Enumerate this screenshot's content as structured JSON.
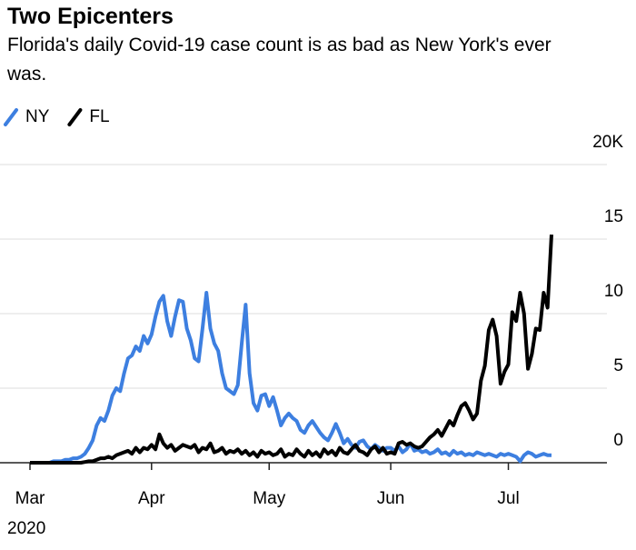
{
  "chart_data": {
    "type": "line",
    "title": "Two Epicenters",
    "subtitle": "Florida's daily Covid-19 case count is as bad as New York's ever was.",
    "year_label": "2020",
    "categories": [
      "Mar",
      null,
      null,
      null,
      null,
      null,
      null,
      null,
      null,
      null,
      null,
      null,
      null,
      null,
      null,
      null,
      null,
      null,
      null,
      null,
      null,
      null,
      null,
      null,
      null,
      null,
      null,
      null,
      null,
      null,
      null,
      "Apr",
      null,
      null,
      null,
      null,
      null,
      null,
      null,
      null,
      null,
      null,
      null,
      null,
      null,
      null,
      null,
      null,
      null,
      null,
      null,
      null,
      null,
      null,
      null,
      null,
      null,
      null,
      null,
      null,
      null,
      "May",
      null,
      null,
      null,
      null,
      null,
      null,
      null,
      null,
      null,
      null,
      null,
      null,
      null,
      null,
      null,
      null,
      null,
      null,
      null,
      null,
      null,
      null,
      null,
      null,
      null,
      null,
      null,
      null,
      null,
      null,
      "Jun",
      null,
      null,
      null,
      null,
      null,
      null,
      null,
      null,
      null,
      null,
      null,
      null,
      null,
      null,
      null,
      null,
      null,
      null,
      null,
      null,
      null,
      null,
      null,
      null,
      null,
      null,
      null,
      null,
      null,
      "Jul",
      null,
      null,
      null,
      null,
      null,
      null,
      null,
      null,
      null,
      null,
      null
    ],
    "series": [
      {
        "name": "NY",
        "color": "#3d7fe0",
        "values": [
          0,
          0,
          0,
          0,
          0,
          0,
          0.1,
          0.1,
          0.1,
          0.2,
          0.2,
          0.3,
          0.3,
          0.4,
          0.6,
          1.0,
          1.5,
          2.5,
          3.0,
          2.8,
          3.5,
          4.5,
          5.0,
          4.8,
          6.0,
          7.0,
          7.2,
          7.8,
          7.5,
          8.5,
          8.0,
          8.6,
          9.8,
          10.8,
          11.2,
          9.5,
          8.5,
          9.8,
          10.9,
          10.8,
          9.0,
          8.2,
          7.0,
          6.8,
          9.0,
          11.4,
          9.0,
          8.0,
          7.5,
          6.0,
          5.0,
          4.8,
          4.6,
          5.2,
          8.0,
          10.6,
          6.0,
          4.0,
          3.5,
          4.5,
          4.6,
          3.8,
          4.4,
          3.5,
          2.5,
          3.0,
          3.3,
          3.0,
          2.8,
          2.2,
          2.0,
          2.5,
          2.8,
          2.4,
          2.0,
          1.7,
          1.5,
          2.0,
          2.6,
          2.0,
          1.3,
          1.6,
          1.2,
          1.0,
          1.4,
          1.5,
          1.1,
          0.9,
          1.2,
          1.0,
          0.8,
          1.0,
          1.0,
          0.8,
          1.1,
          0.7,
          0.9,
          1.3,
          0.8,
          0.9,
          0.7,
          0.8,
          0.6,
          0.7,
          0.9,
          0.6,
          0.7,
          0.5,
          0.8,
          0.6,
          0.7,
          0.5,
          0.6,
          0.5,
          0.7,
          0.6,
          0.5,
          0.6,
          0.5,
          0.4,
          0.6,
          0.5,
          0.6,
          0.5,
          0.4,
          0.1,
          0.5,
          0.7,
          0.6,
          0.4,
          0.5,
          0.6,
          0.5,
          0.5
        ]
      },
      {
        "name": "FL",
        "color": "#000000",
        "values": [
          0,
          0,
          0,
          0,
          0,
          0,
          0,
          0,
          0,
          0,
          0,
          0,
          0,
          0,
          0.05,
          0.1,
          0.1,
          0.2,
          0.3,
          0.3,
          0.4,
          0.3,
          0.5,
          0.6,
          0.7,
          0.8,
          0.6,
          1.0,
          0.7,
          1.0,
          0.9,
          1.2,
          0.9,
          1.9,
          1.3,
          1.0,
          1.2,
          0.8,
          1.0,
          1.2,
          1.1,
          1.0,
          1.2,
          0.7,
          1.0,
          0.9,
          1.3,
          0.7,
          0.8,
          1.0,
          0.6,
          0.8,
          0.7,
          0.9,
          0.6,
          0.8,
          0.5,
          0.7,
          0.4,
          0.8,
          0.6,
          0.7,
          0.5,
          0.6,
          0.9,
          0.4,
          0.6,
          0.5,
          0.9,
          0.6,
          0.4,
          0.8,
          0.5,
          0.7,
          0.4,
          0.9,
          0.6,
          0.8,
          0.5,
          1.0,
          0.7,
          0.6,
          0.9,
          1.2,
          0.8,
          0.7,
          0.5,
          0.9,
          1.1,
          0.7,
          1.0,
          0.6,
          0.7,
          0.6,
          1.3,
          1.4,
          1.2,
          1.3,
          1.1,
          1.0,
          1.1,
          1.4,
          1.7,
          1.9,
          2.2,
          1.8,
          2.3,
          2.8,
          2.5,
          3.2,
          3.8,
          4.0,
          3.5,
          2.9,
          3.3,
          5.5,
          6.5,
          8.9,
          9.6,
          8.5,
          5.3,
          6.1,
          6.6,
          10.1,
          9.5,
          11.4,
          10.0,
          6.3,
          7.3,
          9.0,
          8.9,
          11.4,
          10.4,
          15.3
        ]
      }
    ],
    "ylim": [
      0,
      20
    ],
    "yticks": [
      0,
      5,
      10,
      15,
      {
        "value": 20,
        "label": "20K"
      }
    ],
    "grid": true
  }
}
